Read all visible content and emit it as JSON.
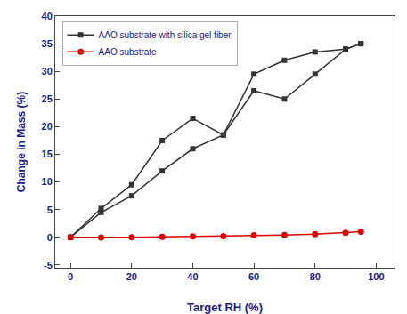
{
  "chart_data": {
    "type": "line",
    "x": [
      0,
      10,
      20,
      30,
      40,
      50,
      60,
      70,
      80,
      90,
      95
    ],
    "series": [
      {
        "name": "AAO substrate with silica gel fiber",
        "color": "#333333",
        "marker": "square",
        "values": [
          0,
          5.2,
          9.5,
          17.5,
          21.5,
          18.5,
          29.5,
          32.0,
          33.5,
          34.0,
          35.0
        ]
      },
      {
        "name": null,
        "color": "#333333",
        "marker": "square",
        "values": [
          0,
          4.5,
          7.5,
          12.0,
          16.0,
          18.5,
          26.5,
          25.0,
          29.5,
          34.0,
          35.0
        ]
      },
      {
        "name": "AAO substrate",
        "color": "#dd0000",
        "marker": "circle",
        "values": [
          0,
          -0.05,
          0.0,
          0.1,
          0.15,
          0.2,
          0.35,
          0.4,
          0.55,
          0.8,
          1.0
        ]
      }
    ],
    "x_label": "Target RH (%)",
    "y_label": "Change in Mass (%)",
    "xlim": [
      -5,
      106
    ],
    "ylim": [
      -5.5,
      40
    ],
    "xticks": [
      0,
      20,
      40,
      60,
      80,
      100
    ],
    "yticks": [
      -5,
      0,
      5,
      10,
      15,
      20,
      25,
      30,
      35,
      40
    ],
    "grid": false,
    "legend": "upper left"
  }
}
